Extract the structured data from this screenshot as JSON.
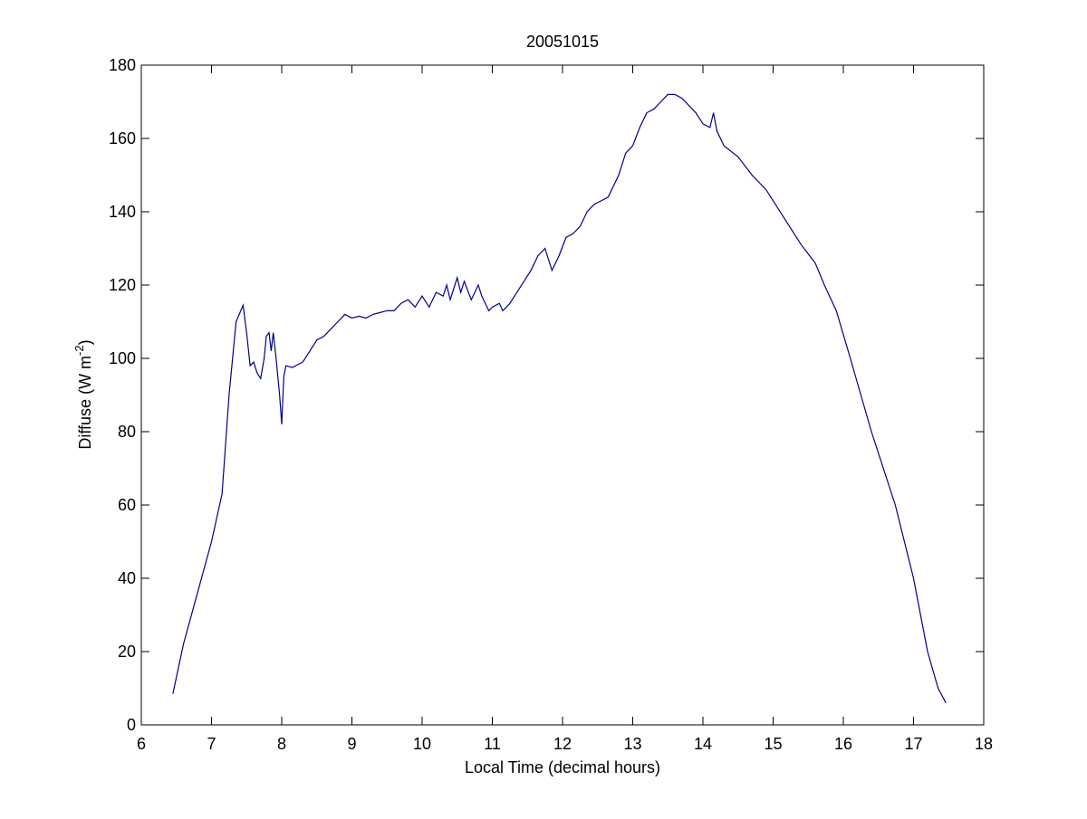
{
  "chart_data": {
    "type": "line",
    "title": "20051015",
    "xlabel": "Local Time (decimal hours)",
    "ylabel": [
      "Diffuse (W m",
      "-2",
      ")"
    ],
    "x": [
      6.45,
      6.6,
      6.8,
      7.0,
      7.15,
      7.25,
      7.3,
      7.35,
      7.45,
      7.5,
      7.55,
      7.6,
      7.65,
      7.7,
      7.75,
      7.78,
      7.82,
      7.85,
      7.88,
      7.92,
      7.97,
      8.0,
      8.03,
      8.06,
      8.15,
      8.3,
      8.4,
      8.5,
      8.6,
      8.7,
      8.8,
      8.9,
      9.0,
      9.1,
      9.2,
      9.3,
      9.4,
      9.5,
      9.6,
      9.7,
      9.8,
      9.9,
      10.0,
      10.1,
      10.2,
      10.3,
      10.35,
      10.4,
      10.5,
      10.55,
      10.6,
      10.7,
      10.8,
      10.85,
      10.95,
      11.0,
      11.1,
      11.15,
      11.25,
      11.35,
      11.45,
      11.55,
      11.65,
      11.75,
      11.85,
      11.95,
      12.05,
      12.15,
      12.25,
      12.35,
      12.45,
      12.55,
      12.65,
      12.8,
      12.9,
      13.0,
      13.1,
      13.2,
      13.3,
      13.4,
      13.5,
      13.6,
      13.7,
      13.8,
      13.9,
      14.0,
      14.1,
      14.15,
      14.2,
      14.3,
      14.5,
      14.7,
      14.9,
      15.0,
      15.2,
      15.4,
      15.6,
      15.73,
      15.9,
      16.1,
      16.25,
      16.4,
      16.57,
      16.74,
      16.87,
      17.0,
      17.1,
      17.2,
      17.35,
      17.46
    ],
    "series": [
      {
        "name": "Diffuse",
        "color": "#00008b",
        "values": [
          8.5,
          22,
          36,
          50,
          63,
          90,
          100,
          110,
          114.5,
          107,
          98,
          99,
          96,
          94.5,
          100,
          106,
          107,
          102,
          107,
          100,
          90,
          82,
          95,
          98,
          97.5,
          99,
          102,
          105,
          106,
          108,
          110,
          112,
          111,
          111.5,
          111,
          112,
          112.5,
          113,
          113,
          115,
          116,
          114,
          117,
          114,
          118,
          117,
          120,
          116,
          122,
          118,
          121,
          116,
          120,
          117,
          113,
          114,
          115,
          113,
          115,
          118,
          121,
          124,
          128,
          130,
          124,
          128,
          133,
          134,
          136,
          140,
          142,
          143,
          144,
          150,
          156,
          158,
          163,
          167,
          168,
          170,
          172,
          172,
          171,
          169,
          167,
          164,
          163,
          167,
          162,
          158,
          155,
          150,
          146,
          143,
          137,
          131,
          126,
          120,
          113,
          100,
          90,
          80,
          70,
          60,
          50,
          40,
          30,
          20,
          10,
          6
        ]
      }
    ],
    "xlim": [
      6,
      18
    ],
    "xticks": [
      6,
      7,
      8,
      9,
      10,
      11,
      12,
      13,
      14,
      15,
      16,
      17,
      18
    ],
    "ylim": [
      0,
      180
    ],
    "yticks": [
      0,
      20,
      40,
      60,
      80,
      100,
      120,
      140,
      160,
      180
    ],
    "grid": false
  }
}
